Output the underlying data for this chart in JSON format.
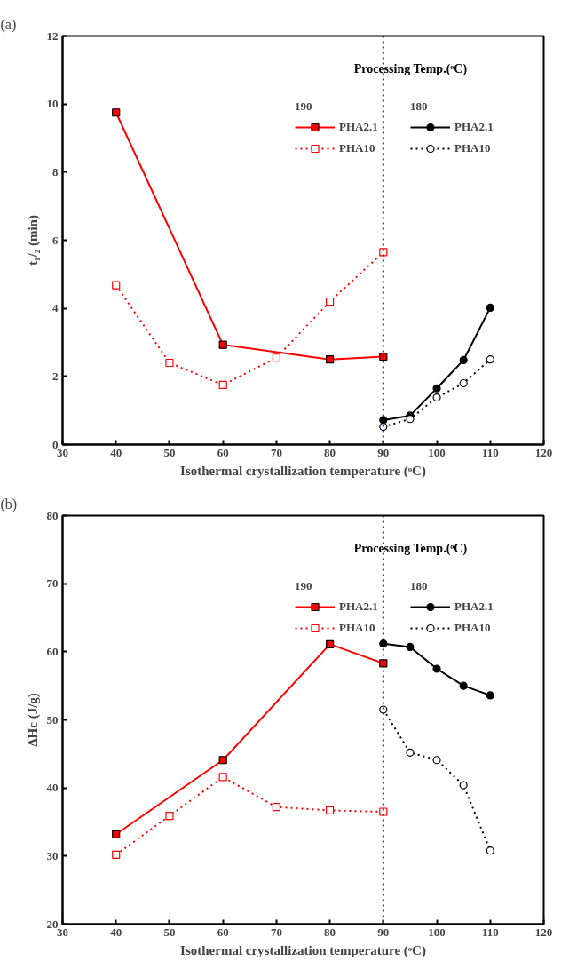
{
  "chart_data": [
    {
      "type": "line",
      "title": "(a)",
      "xlabel": "Isothermal crystallization temperature (ᵒC)",
      "ylabel": "t₁/₂ (min)",
      "legend_title": "Processing Temp.(ᵒC)",
      "legend": "top right",
      "grid": false,
      "xlim": [
        30,
        120
      ],
      "xticks": [
        30,
        40,
        50,
        60,
        70,
        80,
        90,
        100,
        110,
        120
      ],
      "ylim": [
        0,
        12
      ],
      "yticks": [
        0,
        2,
        4,
        6,
        8,
        10,
        12
      ],
      "annotations": [
        "190",
        "180"
      ],
      "ref_lines": [
        {
          "axis": "x",
          "value": 90,
          "color": "#0000ff",
          "line_style": "dotted"
        }
      ],
      "series": [
        {
          "name": "PHA2.1",
          "color": "#ff0000",
          "marker": "square",
          "line_style": "solid",
          "x": [
            40,
            60,
            80,
            90
          ],
          "values": [
            9.75,
            2.93,
            2.5,
            2.58
          ]
        },
        {
          "name": "PHA10",
          "color": "#ff0000",
          "marker": "square",
          "line_style": "dotted",
          "x": [
            40,
            50,
            60,
            70,
            80,
            90
          ],
          "values": [
            4.68,
            2.4,
            1.75,
            2.55,
            4.2,
            5.65
          ]
        },
        {
          "name": "PHA2.1",
          "color": "#000000",
          "marker": "circle",
          "line_style": "solid",
          "x": [
            90,
            95,
            100,
            105,
            110
          ],
          "values": [
            0.72,
            0.85,
            1.65,
            2.48,
            4.02
          ]
        },
        {
          "name": "PHA10",
          "color": "#000000",
          "marker": "circle",
          "line_style": "dotted",
          "x": [
            90,
            95,
            100,
            105,
            110
          ],
          "values": [
            0.52,
            0.75,
            1.38,
            1.8,
            2.5
          ]
        }
      ]
    },
    {
      "type": "line",
      "title": "(b)",
      "xlabel": "Isothermal crystallization temperature (ᵒC)",
      "ylabel": "ΔHc (J/g)",
      "legend_title": "Processing Temp.(ᵒC)",
      "legend": "top right",
      "grid": false,
      "xlim": [
        30,
        120
      ],
      "xticks": [
        30,
        40,
        50,
        60,
        70,
        80,
        90,
        100,
        110,
        120
      ],
      "ylim": [
        20,
        80
      ],
      "yticks": [
        20,
        30,
        40,
        50,
        60,
        70,
        80
      ],
      "annotations": [
        "190",
        "180"
      ],
      "ref_lines": [
        {
          "axis": "x",
          "value": 90,
          "color": "#0000ff",
          "line_style": "dotted"
        }
      ],
      "series": [
        {
          "name": "PHA2.1",
          "color": "#ff0000",
          "marker": "square",
          "line_style": "solid",
          "x": [
            40,
            60,
            80,
            90
          ],
          "values": [
            33.2,
            44.1,
            61.1,
            58.3
          ]
        },
        {
          "name": "PHA10",
          "color": "#ff0000",
          "marker": "square",
          "line_style": "dotted",
          "x": [
            40,
            50,
            60,
            70,
            80,
            90
          ],
          "values": [
            30.2,
            35.9,
            41.6,
            37.2,
            36.7,
            36.5
          ]
        },
        {
          "name": "PHA2.1",
          "color": "#000000",
          "marker": "circle",
          "line_style": "solid",
          "x": [
            90,
            95,
            100,
            105,
            110
          ],
          "values": [
            61.2,
            60.7,
            57.5,
            55.0,
            53.6
          ]
        },
        {
          "name": "PHA10",
          "color": "#000000",
          "marker": "circle",
          "line_style": "dotted",
          "x": [
            90,
            95,
            100,
            105,
            110
          ],
          "values": [
            51.5,
            45.2,
            44.1,
            40.4,
            30.8
          ]
        }
      ]
    }
  ]
}
